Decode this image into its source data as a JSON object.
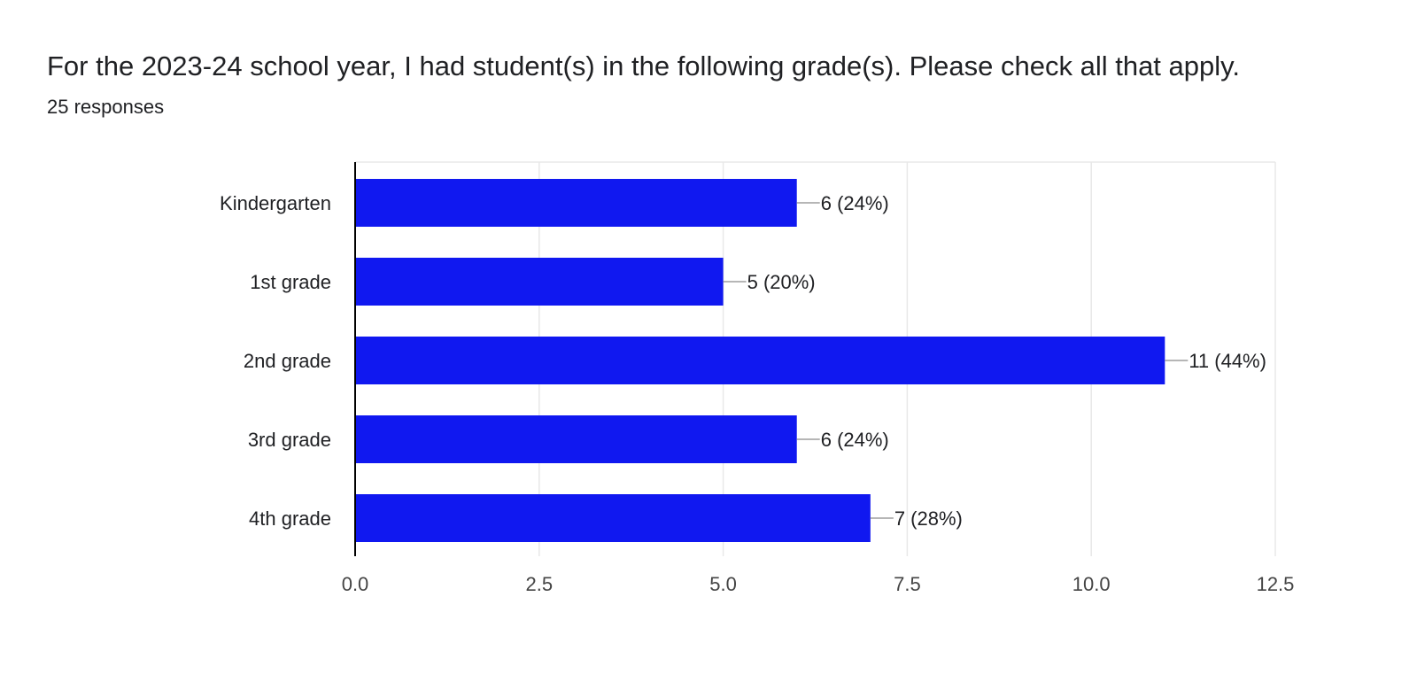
{
  "question": {
    "title": "For the 2023-24 school year, I had student(s) in the following grade(s).  Please check all that apply.",
    "responses_label": "25 responses"
  },
  "colors": {
    "bar": "#1018f0",
    "axis": "#000000",
    "grid": "#e8e8e8",
    "connector": "#9e9e9e",
    "text": "#202124",
    "tick_text": "#444444"
  },
  "chart_data": {
    "type": "bar",
    "orientation": "horizontal",
    "title": "",
    "xlabel": "",
    "ylabel": "",
    "categories": [
      "Kindergarten",
      "1st grade",
      "2nd grade",
      "3rd grade",
      "4th grade"
    ],
    "values": [
      6,
      5,
      11,
      6,
      7
    ],
    "data_labels": [
      "6 (24%)",
      "5 (20%)",
      "11 (44%)",
      "6 (24%)",
      "7 (28%)"
    ],
    "xlim": [
      0,
      12.5
    ],
    "x_ticks": [
      0,
      2.5,
      5,
      7.5,
      10,
      12.5
    ],
    "x_tick_labels": [
      "0.0",
      "2.5",
      "5.0",
      "7.5",
      "10.0",
      "12.5"
    ],
    "grid": true,
    "legend": "none"
  }
}
